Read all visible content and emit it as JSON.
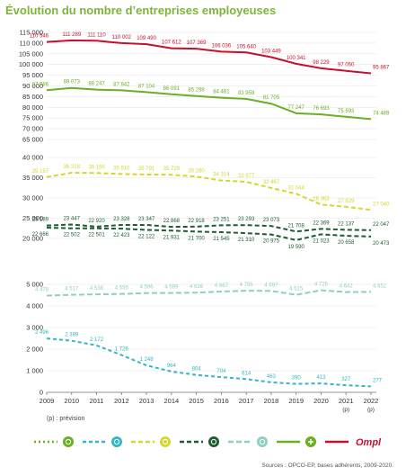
{
  "title": "Évolution du nombre d’entreprises employeuses",
  "footnote": "(p) : prévision",
  "source": "Sources : OPCO-EP, bases adhérents, 2009-2020.",
  "logo_text": "Ompl",
  "chart_data": {
    "type": "line",
    "x": [
      "2009",
      "2010",
      "2011",
      "2012",
      "2013",
      "2014",
      "2015",
      "2016",
      "2017",
      "2018",
      "2019",
      "2020",
      "2021",
      "2022"
    ],
    "x_sublabels": [
      "",
      "",
      "",
      "",
      "",
      "",
      "",
      "",
      "",
      "",
      "",
      "",
      "(p)",
      "(p)"
    ],
    "panels": [
      {
        "ylim": [
          65000,
          115000
        ],
        "yticks": [
          "115 000",
          "110 000",
          "105 000",
          "100 000",
          "95 000",
          "90 000",
          "85 000",
          "80 000",
          "75 000",
          "70 000",
          "65 000"
        ],
        "series": [
          {
            "id": "ompl",
            "color": "#c8102e",
            "dash": "solid",
            "values": [
              110546,
              111289,
              111110,
              110002,
              109490,
              107612,
              107369,
              106036,
              105640,
              103449,
              100341,
              98229,
              97050,
              95867
            ],
            "labels": [
              "110 546",
              "111 289",
              "111 110",
              "110 002",
              "109 490",
              "107 612",
              "107 369",
              "106 036",
              "105 640",
              "103 449",
              "100 341",
              "98 229",
              "97 050",
              "95 867"
            ]
          },
          {
            "id": "plus",
            "color": "#6ab023",
            "dash": "solid",
            "values": [
              87986,
              89073,
              88247,
              87942,
              87104,
              86091,
              85298,
              84481,
              83959,
              81705,
              77247,
              76693,
              75593,
              74489
            ],
            "labels": [
              "87 986",
              "89 073",
              "88 247",
              "87 942",
              "87 104",
              "86 091",
              "85 298",
              "84 481",
              "83 959",
              "81 705",
              "77 247",
              "76 693",
              "75 593",
              "74 489"
            ]
          }
        ]
      },
      {
        "ylim": [
          20000,
          40000
        ],
        "yticks": [
          "40 000",
          "35 000",
          "30 000",
          "25 000",
          "20 000"
        ],
        "series": [
          {
            "id": "yellow",
            "color": "#d6d632",
            "dash": "5,3",
            "values": [
              35157,
              36218,
              36166,
              35910,
              35791,
              35729,
              35260,
              34314,
              33977,
              32467,
              31044,
              28363,
              27829,
              27040
            ],
            "labels": [
              "35 157",
              "36 218",
              "36 166",
              "35 910",
              "35 791",
              "35 729",
              "35 260",
              "34 314",
              "33 977",
              "32 467",
              "31 044",
              "28 363",
              "27 829",
              "27 040"
            ]
          },
          {
            "id": "darkgreen_upper",
            "color": "#1e5c32",
            "dash": "5,3",
            "values": [
              23189,
              23447,
              22920,
              23328,
              23347,
              22868,
              22918,
              23251,
              23293,
              23073,
              21708,
              22369,
              22137,
              22047
            ],
            "labels": [
              "23 189",
              "23 447",
              "22 920",
              "23 328",
              "23 347",
              "22 868",
              "22 918",
              "23 251",
              "23 293",
              "23 073",
              "21 708",
              "22 369",
              "22 137",
              "22 047"
            ]
          },
          {
            "id": "darkgreen_lower",
            "color": "#1e5c32",
            "dash": "5,3",
            "values": [
              22666,
              22502,
              22501,
              22423,
              22122,
              21931,
              21700,
              21545,
              21310,
              20975,
              19590,
              21023,
              20658,
              20473
            ],
            "labels": [
              "22 666",
              "22 502",
              "22 501",
              "22 423",
              "22 122",
              "21 931",
              "21 700",
              "21 545",
              "21 310",
              "20 975",
              "19 590",
              "21 023",
              "20 658",
              "20 473"
            ]
          }
        ]
      },
      {
        "ylim": [
          0,
          5000
        ],
        "yticks": [
          "5 000",
          "4 000",
          "3 000",
          "2 000",
          "1 000",
          "0"
        ],
        "series": [
          {
            "id": "lightteal",
            "color": "#8fcfc3",
            "dash": "6,3",
            "values": [
              4478,
              4517,
              4538,
              4555,
              4596,
              4599,
              4616,
              4667,
              4705,
              4697,
              4515,
              4725,
              4642,
              4652
            ],
            "labels": [
              "4 478",
              "4 517",
              "4 538",
              "4 555",
              "4 596",
              "4 599",
              "4 616",
              "4 667",
              "4 705",
              "4 697",
              "4 515",
              "4 725",
              "4 642",
              "4 652"
            ]
          },
          {
            "id": "cyan",
            "color": "#33b6c6",
            "dash": "4,3",
            "values": [
              2496,
              2389,
              2172,
              1726,
              1248,
              964,
              804,
              704,
              614,
              463,
              390,
              413,
              327,
              277
            ],
            "labels": [
              "2 496",
              "2 389",
              "2 172",
              "1 726",
              "1 248",
              "964",
              "804",
              "704",
              "614",
              "463",
              "390",
              "413",
              "327",
              "277"
            ]
          }
        ]
      }
    ],
    "legend": [
      {
        "series": "green_dotted",
        "color": "#6ab023",
        "dash": "2,3",
        "icon": "leaf-icon"
      },
      {
        "series": "cyan",
        "color": "#33b6c6",
        "dash": "4,3",
        "icon": "drop-icon"
      },
      {
        "series": "yellow",
        "color": "#d6d632",
        "dash": "5,3",
        "icon": "pen-icon"
      },
      {
        "series": "darkgreen",
        "color": "#1e5c32",
        "dash": "5,3",
        "icon": "leaf-dark-icon"
      },
      {
        "series": "lightteal",
        "color": "#8fcfc3",
        "dash": "6,3",
        "icon": "wave-icon"
      },
      {
        "series": "plus",
        "color": "#6ab023",
        "dash": "solid",
        "icon": "plus-icon"
      },
      {
        "series": "ompl",
        "color": "#c8102e",
        "dash": "solid",
        "icon": "ompl-logo"
      }
    ]
  }
}
